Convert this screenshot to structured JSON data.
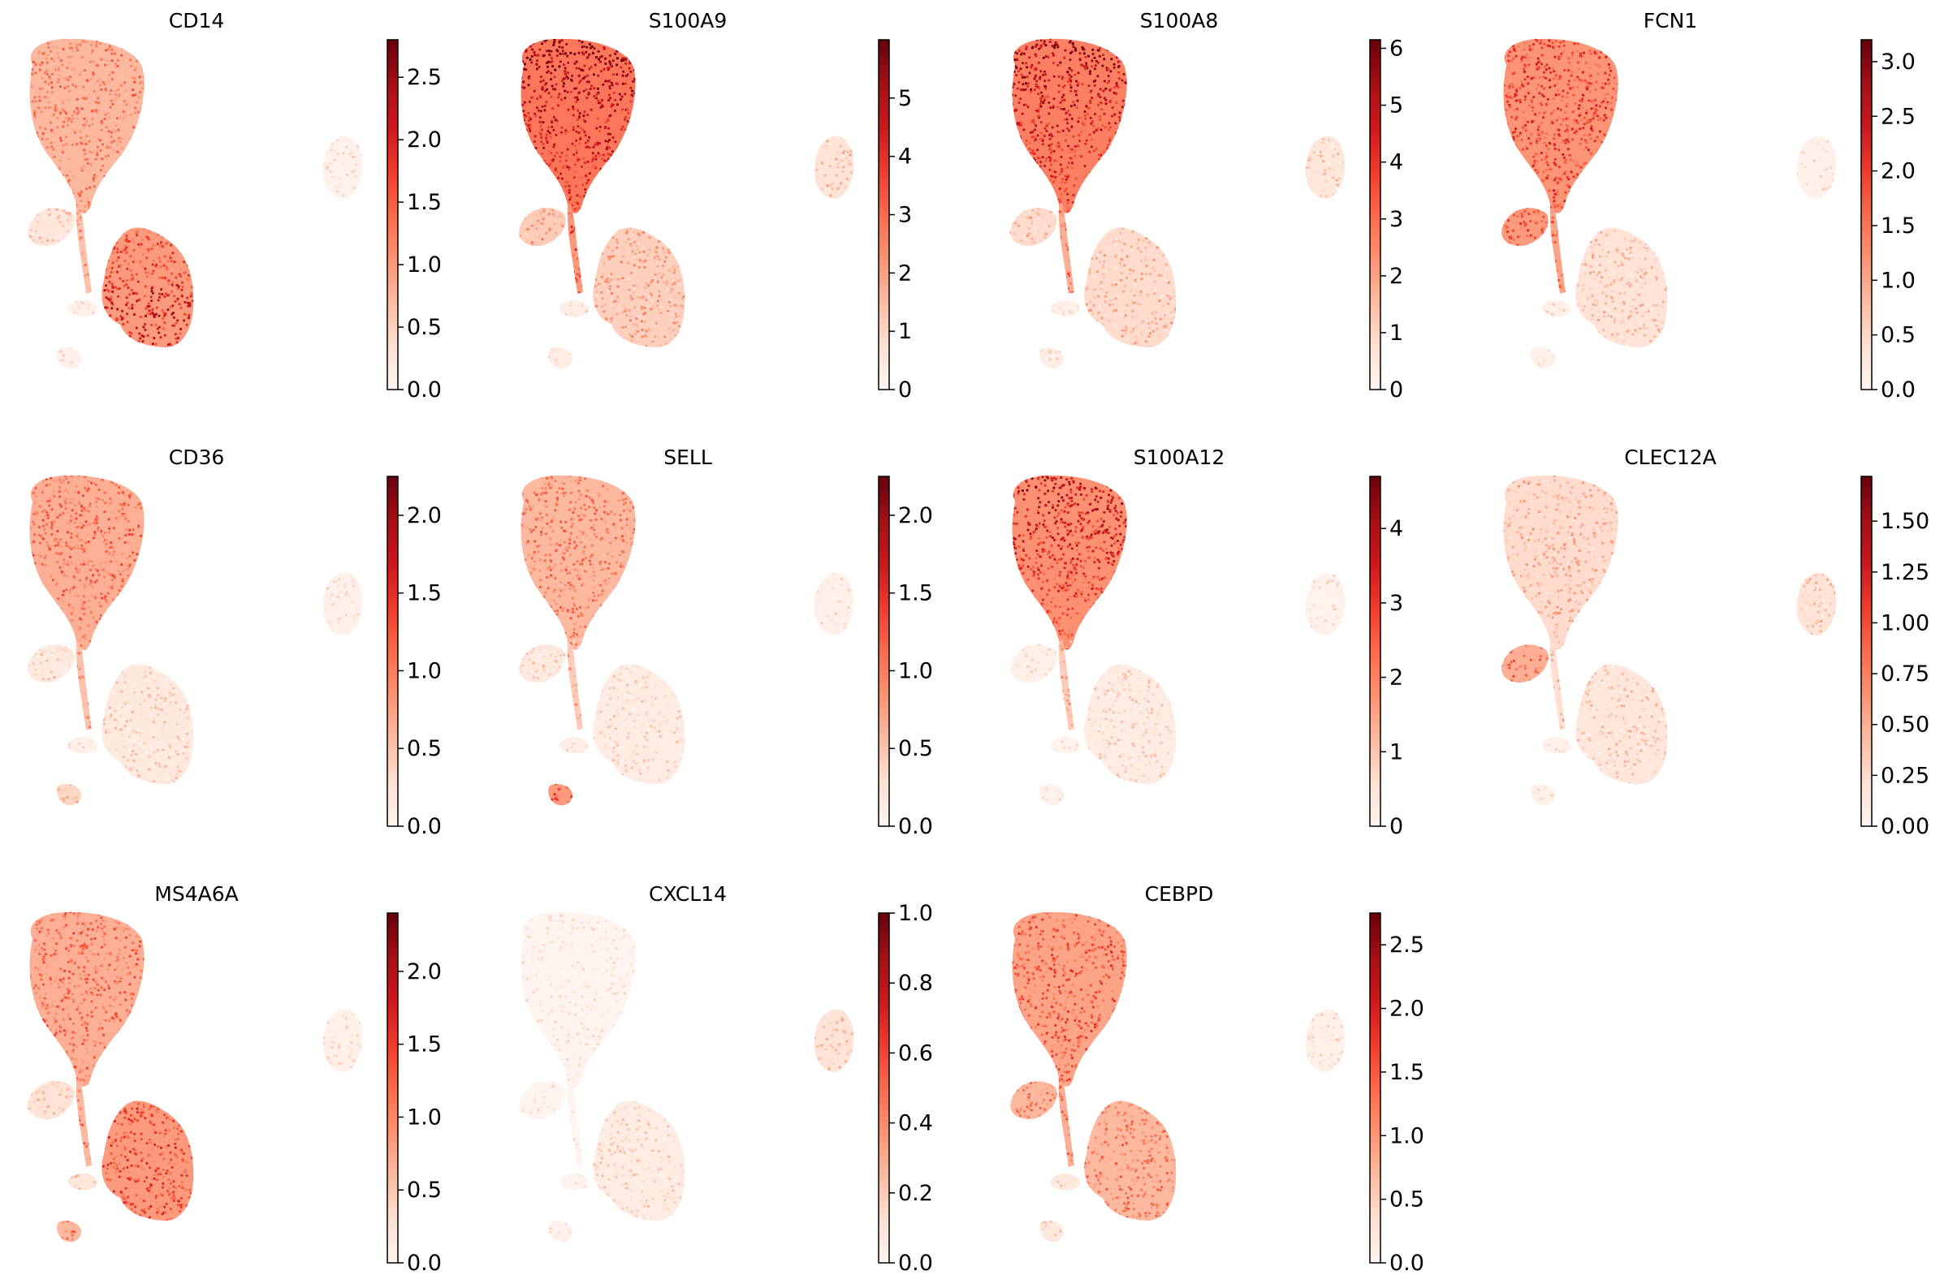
{
  "chart_data": [
    {
      "type": "scatter",
      "title": "CD14",
      "colormap": "Reds",
      "pattern": "cd14",
      "colorbar": {
        "min": 0.0,
        "max": 2.8,
        "ticks": [
          0.0,
          0.5,
          1.0,
          1.5,
          2.0,
          2.5
        ],
        "tick_labels": [
          "0.0",
          "0.5",
          "1.0",
          "1.5",
          "2.0",
          "2.5"
        ]
      }
    },
    {
      "type": "scatter",
      "title": "S100A9",
      "colormap": "Reds",
      "pattern": "s100a9",
      "colorbar": {
        "min": 0,
        "max": 6.0,
        "ticks": [
          0,
          1,
          2,
          3,
          4,
          5
        ],
        "tick_labels": [
          "0",
          "1",
          "2",
          "3",
          "4",
          "5"
        ]
      }
    },
    {
      "type": "scatter",
      "title": "S100A8",
      "colormap": "Reds",
      "pattern": "s100a8",
      "colorbar": {
        "min": 0,
        "max": 6.15,
        "ticks": [
          0,
          1,
          2,
          3,
          4,
          5,
          6
        ],
        "tick_labels": [
          "0",
          "1",
          "2",
          "3",
          "4",
          "5",
          "6"
        ]
      }
    },
    {
      "type": "scatter",
      "title": "FCN1",
      "colormap": "Reds",
      "pattern": "fcn1",
      "colorbar": {
        "min": 0.0,
        "max": 3.2,
        "ticks": [
          0.0,
          0.5,
          1.0,
          1.5,
          2.0,
          2.5,
          3.0
        ],
        "tick_labels": [
          "0.0",
          "0.5",
          "1.0",
          "1.5",
          "2.0",
          "2.5",
          "3.0"
        ]
      }
    },
    {
      "type": "scatter",
      "title": "CD36",
      "colormap": "Reds",
      "pattern": "cd36",
      "colorbar": {
        "min": 0.0,
        "max": 2.25,
        "ticks": [
          0.0,
          0.5,
          1.0,
          1.5,
          2.0
        ],
        "tick_labels": [
          "0.0",
          "0.5",
          "1.0",
          "1.5",
          "2.0"
        ]
      }
    },
    {
      "type": "scatter",
      "title": "SELL",
      "colormap": "Reds",
      "pattern": "sell",
      "colorbar": {
        "min": 0.0,
        "max": 2.25,
        "ticks": [
          0.0,
          0.5,
          1.0,
          1.5,
          2.0
        ],
        "tick_labels": [
          "0.0",
          "0.5",
          "1.0",
          "1.5",
          "2.0"
        ]
      }
    },
    {
      "type": "scatter",
      "title": "S100A12",
      "colormap": "Reds",
      "pattern": "s100a12",
      "colorbar": {
        "min": 0,
        "max": 4.7,
        "ticks": [
          0,
          1,
          2,
          3,
          4
        ],
        "tick_labels": [
          "0",
          "1",
          "2",
          "3",
          "4"
        ]
      }
    },
    {
      "type": "scatter",
      "title": "CLEC12A",
      "colormap": "Reds",
      "pattern": "clec12a",
      "colorbar": {
        "min": 0.0,
        "max": 1.72,
        "ticks": [
          0.0,
          0.25,
          0.5,
          0.75,
          1.0,
          1.25,
          1.5
        ],
        "tick_labels": [
          "0.00",
          "0.25",
          "0.50",
          "0.75",
          "1.00",
          "1.25",
          "1.50"
        ]
      }
    },
    {
      "type": "scatter",
      "title": "MS4A6A",
      "colormap": "Reds",
      "pattern": "ms4a6a",
      "colorbar": {
        "min": 0.0,
        "max": 2.4,
        "ticks": [
          0.0,
          0.5,
          1.0,
          1.5,
          2.0
        ],
        "tick_labels": [
          "0.0",
          "0.5",
          "1.0",
          "1.5",
          "2.0"
        ]
      }
    },
    {
      "type": "scatter",
      "title": "CXCL14",
      "colormap": "Reds",
      "pattern": "cxcl14",
      "colorbar": {
        "min": 0.0,
        "max": 1.0,
        "ticks": [
          0.0,
          0.2,
          0.4,
          0.6,
          0.8,
          1.0
        ],
        "tick_labels": [
          "0.0",
          "0.2",
          "0.4",
          "0.6",
          "0.8",
          "1.0"
        ]
      }
    },
    {
      "type": "scatter",
      "title": "CEBPD",
      "colormap": "Reds",
      "pattern": "cebpd",
      "colorbar": {
        "min": 0.0,
        "max": 2.75,
        "ticks": [
          0.0,
          0.5,
          1.0,
          1.5,
          2.0,
          2.5
        ],
        "tick_labels": [
          "0.0",
          "0.5",
          "1.0",
          "1.5",
          "2.0",
          "2.5"
        ]
      }
    }
  ]
}
